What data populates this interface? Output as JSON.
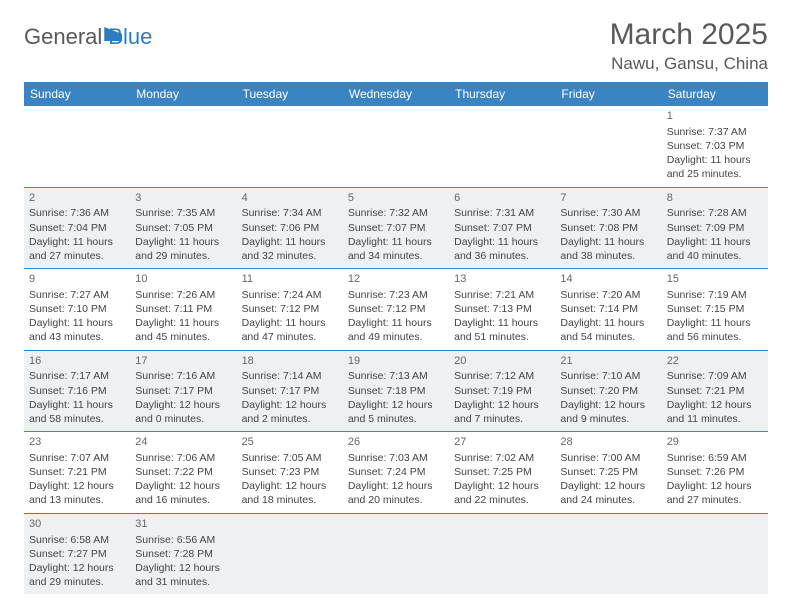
{
  "logo": {
    "part1": "General",
    "part2": "Blue"
  },
  "title": "March 2025",
  "location": "Nawu, Gansu, China",
  "colors": {
    "header_bg": "#3b84c4",
    "header_text": "#ffffff",
    "alt_row_bg": "#eef1f3",
    "border": "#3b84c4",
    "title_color": "#58595b",
    "logo_accent": "#2f7bbf"
  },
  "weekdays": [
    "Sunday",
    "Monday",
    "Tuesday",
    "Wednesday",
    "Thursday",
    "Friday",
    "Saturday"
  ],
  "weeks": [
    [
      null,
      null,
      null,
      null,
      null,
      null,
      {
        "n": "1",
        "sr": "7:37 AM",
        "ss": "7:03 PM",
        "dl": "11 hours and 25 minutes."
      }
    ],
    [
      {
        "n": "2",
        "sr": "7:36 AM",
        "ss": "7:04 PM",
        "dl": "11 hours and 27 minutes."
      },
      {
        "n": "3",
        "sr": "7:35 AM",
        "ss": "7:05 PM",
        "dl": "11 hours and 29 minutes."
      },
      {
        "n": "4",
        "sr": "7:34 AM",
        "ss": "7:06 PM",
        "dl": "11 hours and 32 minutes."
      },
      {
        "n": "5",
        "sr": "7:32 AM",
        "ss": "7:07 PM",
        "dl": "11 hours and 34 minutes."
      },
      {
        "n": "6",
        "sr": "7:31 AM",
        "ss": "7:07 PM",
        "dl": "11 hours and 36 minutes."
      },
      {
        "n": "7",
        "sr": "7:30 AM",
        "ss": "7:08 PM",
        "dl": "11 hours and 38 minutes."
      },
      {
        "n": "8",
        "sr": "7:28 AM",
        "ss": "7:09 PM",
        "dl": "11 hours and 40 minutes."
      }
    ],
    [
      {
        "n": "9",
        "sr": "7:27 AM",
        "ss": "7:10 PM",
        "dl": "11 hours and 43 minutes."
      },
      {
        "n": "10",
        "sr": "7:26 AM",
        "ss": "7:11 PM",
        "dl": "11 hours and 45 minutes."
      },
      {
        "n": "11",
        "sr": "7:24 AM",
        "ss": "7:12 PM",
        "dl": "11 hours and 47 minutes."
      },
      {
        "n": "12",
        "sr": "7:23 AM",
        "ss": "7:12 PM",
        "dl": "11 hours and 49 minutes."
      },
      {
        "n": "13",
        "sr": "7:21 AM",
        "ss": "7:13 PM",
        "dl": "11 hours and 51 minutes."
      },
      {
        "n": "14",
        "sr": "7:20 AM",
        "ss": "7:14 PM",
        "dl": "11 hours and 54 minutes."
      },
      {
        "n": "15",
        "sr": "7:19 AM",
        "ss": "7:15 PM",
        "dl": "11 hours and 56 minutes."
      }
    ],
    [
      {
        "n": "16",
        "sr": "7:17 AM",
        "ss": "7:16 PM",
        "dl": "11 hours and 58 minutes."
      },
      {
        "n": "17",
        "sr": "7:16 AM",
        "ss": "7:17 PM",
        "dl": "12 hours and 0 minutes."
      },
      {
        "n": "18",
        "sr": "7:14 AM",
        "ss": "7:17 PM",
        "dl": "12 hours and 2 minutes."
      },
      {
        "n": "19",
        "sr": "7:13 AM",
        "ss": "7:18 PM",
        "dl": "12 hours and 5 minutes."
      },
      {
        "n": "20",
        "sr": "7:12 AM",
        "ss": "7:19 PM",
        "dl": "12 hours and 7 minutes."
      },
      {
        "n": "21",
        "sr": "7:10 AM",
        "ss": "7:20 PM",
        "dl": "12 hours and 9 minutes."
      },
      {
        "n": "22",
        "sr": "7:09 AM",
        "ss": "7:21 PM",
        "dl": "12 hours and 11 minutes."
      }
    ],
    [
      {
        "n": "23",
        "sr": "7:07 AM",
        "ss": "7:21 PM",
        "dl": "12 hours and 13 minutes."
      },
      {
        "n": "24",
        "sr": "7:06 AM",
        "ss": "7:22 PM",
        "dl": "12 hours and 16 minutes."
      },
      {
        "n": "25",
        "sr": "7:05 AM",
        "ss": "7:23 PM",
        "dl": "12 hours and 18 minutes."
      },
      {
        "n": "26",
        "sr": "7:03 AM",
        "ss": "7:24 PM",
        "dl": "12 hours and 20 minutes."
      },
      {
        "n": "27",
        "sr": "7:02 AM",
        "ss": "7:25 PM",
        "dl": "12 hours and 22 minutes."
      },
      {
        "n": "28",
        "sr": "7:00 AM",
        "ss": "7:25 PM",
        "dl": "12 hours and 24 minutes."
      },
      {
        "n": "29",
        "sr": "6:59 AM",
        "ss": "7:26 PM",
        "dl": "12 hours and 27 minutes."
      }
    ],
    [
      {
        "n": "30",
        "sr": "6:58 AM",
        "ss": "7:27 PM",
        "dl": "12 hours and 29 minutes."
      },
      {
        "n": "31",
        "sr": "6:56 AM",
        "ss": "7:28 PM",
        "dl": "12 hours and 31 minutes."
      },
      null,
      null,
      null,
      null,
      null
    ]
  ],
  "labels": {
    "sunrise": "Sunrise:",
    "sunset": "Sunset:",
    "daylight": "Daylight:"
  }
}
